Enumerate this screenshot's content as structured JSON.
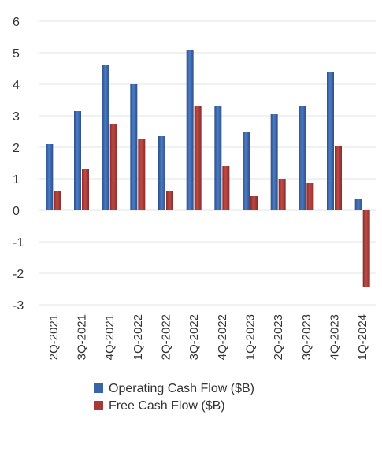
{
  "chart_data": {
    "type": "bar",
    "title": "",
    "xlabel": "",
    "ylabel": "",
    "categories": [
      "2Q-2021",
      "3Q-2021",
      "4Q-2021",
      "1Q-2022",
      "2Q-2022",
      "3Q-2022",
      "4Q-2022",
      "1Q-2023",
      "2Q-2023",
      "3Q-2023",
      "4Q-2023",
      "1Q-2024"
    ],
    "series": [
      {
        "name": "Operating Cash Flow ($B)",
        "color": "#3a64a8",
        "values": [
          2.1,
          3.15,
          4.6,
          4.0,
          2.35,
          5.1,
          3.3,
          2.5,
          3.05,
          3.3,
          4.4,
          0.35
        ]
      },
      {
        "name": "Free Cash Flow ($B)",
        "color": "#a83a36",
        "values": [
          0.6,
          1.3,
          2.75,
          2.25,
          0.6,
          3.3,
          1.4,
          0.45,
          1.0,
          0.85,
          2.05,
          -2.45
        ]
      }
    ],
    "ylim": [
      -3,
      6
    ],
    "yticks": [
      "-3",
      "-2",
      "-1",
      "0",
      "1",
      "2",
      "3",
      "4",
      "5",
      "6"
    ],
    "grid": true,
    "legend_position": "bottom"
  }
}
